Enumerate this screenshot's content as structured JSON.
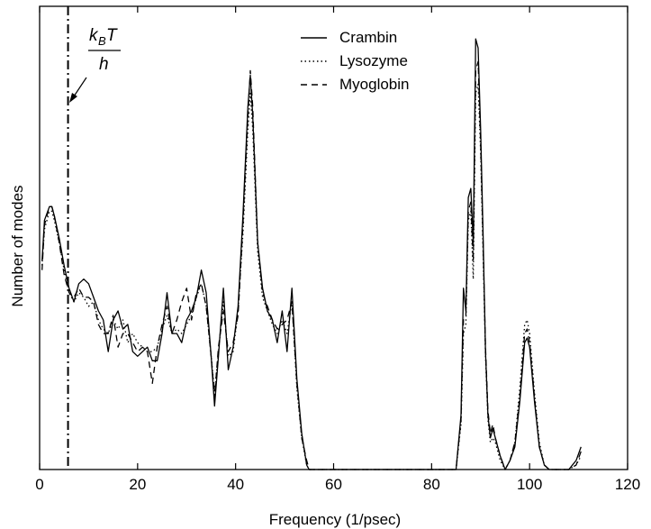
{
  "chart_data": {
    "type": "line",
    "title": "",
    "xlabel": "Frequency (1/psec)",
    "ylabel": "Number of modes",
    "xlim": [
      0,
      120
    ],
    "ylim": [
      0,
      1
    ],
    "xticks": [
      0,
      20,
      40,
      60,
      80,
      100,
      120
    ],
    "yticks_shown": false,
    "grid": false,
    "legend_position": "top-center",
    "annotation": {
      "numerator_k": "k",
      "numerator_sub": "B",
      "numerator_T": "T",
      "denominator": "h",
      "x": 5.8
    },
    "series": [
      {
        "name": "Crambin",
        "style": "solid",
        "color": "#000000",
        "points": [
          [
            0.5,
            0.46
          ],
          [
            1,
            0.55
          ],
          [
            2,
            0.58
          ],
          [
            2.5,
            0.58
          ],
          [
            3,
            0.56
          ],
          [
            4,
            0.51
          ],
          [
            5,
            0.45
          ],
          [
            6,
            0.4
          ],
          [
            7,
            0.37
          ],
          [
            8,
            0.41
          ],
          [
            9,
            0.42
          ],
          [
            10,
            0.41
          ],
          [
            11,
            0.38
          ],
          [
            12,
            0.35
          ],
          [
            13,
            0.33
          ],
          [
            14,
            0.26
          ],
          [
            15,
            0.33
          ],
          [
            16,
            0.35
          ],
          [
            17,
            0.31
          ],
          [
            18,
            0.32
          ],
          [
            19,
            0.26
          ],
          [
            20,
            0.25
          ],
          [
            21,
            0.26
          ],
          [
            22,
            0.27
          ],
          [
            23,
            0.24
          ],
          [
            24,
            0.24
          ],
          [
            25,
            0.3
          ],
          [
            26,
            0.39
          ],
          [
            27,
            0.3
          ],
          [
            28,
            0.3
          ],
          [
            29,
            0.28
          ],
          [
            30,
            0.33
          ],
          [
            31,
            0.35
          ],
          [
            32,
            0.38
          ],
          [
            33,
            0.44
          ],
          [
            34,
            0.39
          ],
          [
            35,
            0.25
          ],
          [
            35.7,
            0.14
          ],
          [
            36.5,
            0.25
          ],
          [
            37.5,
            0.4
          ],
          [
            38.5,
            0.22
          ],
          [
            39.5,
            0.27
          ],
          [
            40.5,
            0.36
          ],
          [
            41.5,
            0.56
          ],
          [
            42.5,
            0.8
          ],
          [
            43,
            0.87
          ],
          [
            43.5,
            0.78
          ],
          [
            44.5,
            0.5
          ],
          [
            45.5,
            0.4
          ],
          [
            46.5,
            0.35
          ],
          [
            47.5,
            0.33
          ],
          [
            48.5,
            0.28
          ],
          [
            49.5,
            0.35
          ],
          [
            50.5,
            0.26
          ],
          [
            51.5,
            0.4
          ],
          [
            52.5,
            0.2
          ],
          [
            53.5,
            0.08
          ],
          [
            54.5,
            0.01
          ],
          [
            55,
            0.0
          ],
          [
            56,
            0.0
          ],
          [
            70,
            0.0
          ],
          [
            85,
            0.0
          ],
          [
            86,
            0.12
          ],
          [
            86.5,
            0.4
          ],
          [
            87,
            0.35
          ],
          [
            87.5,
            0.6
          ],
          [
            88,
            0.62
          ],
          [
            88.5,
            0.5
          ],
          [
            89,
            0.95
          ],
          [
            89.5,
            0.93
          ],
          [
            90,
            0.75
          ],
          [
            90.5,
            0.52
          ],
          [
            91,
            0.26
          ],
          [
            91.5,
            0.12
          ],
          [
            92,
            0.07
          ],
          [
            92.5,
            0.09
          ],
          [
            93,
            0.07
          ],
          [
            94,
            0.03
          ],
          [
            95,
            0.0
          ],
          [
            96,
            0.02
          ],
          [
            97,
            0.05
          ],
          [
            98,
            0.15
          ],
          [
            99,
            0.28
          ],
          [
            99.5,
            0.29
          ],
          [
            100,
            0.27
          ],
          [
            101,
            0.15
          ],
          [
            102,
            0.05
          ],
          [
            103,
            0.01
          ],
          [
            104,
            0.0
          ],
          [
            108,
            0.0
          ],
          [
            109.5,
            0.02
          ],
          [
            110.5,
            0.05
          ]
        ]
      },
      {
        "name": "Lysozyme",
        "style": "dotted",
        "color": "#000000",
        "points": [
          [
            0.5,
            0.45
          ],
          [
            1,
            0.53
          ],
          [
            2,
            0.57
          ],
          [
            2.5,
            0.57
          ],
          [
            3,
            0.55
          ],
          [
            4,
            0.5
          ],
          [
            5,
            0.44
          ],
          [
            6,
            0.39
          ],
          [
            7,
            0.37
          ],
          [
            8,
            0.39
          ],
          [
            9,
            0.38
          ],
          [
            10,
            0.36
          ],
          [
            11,
            0.37
          ],
          [
            12,
            0.33
          ],
          [
            13,
            0.31
          ],
          [
            14,
            0.3
          ],
          [
            15,
            0.33
          ],
          [
            16,
            0.31
          ],
          [
            17,
            0.33
          ],
          [
            18,
            0.28
          ],
          [
            19,
            0.3
          ],
          [
            20,
            0.28
          ],
          [
            21,
            0.27
          ],
          [
            22,
            0.26
          ],
          [
            23,
            0.26
          ],
          [
            24,
            0.27
          ],
          [
            25,
            0.31
          ],
          [
            26,
            0.34
          ],
          [
            27,
            0.3
          ],
          [
            28,
            0.31
          ],
          [
            29,
            0.3
          ],
          [
            30,
            0.32
          ],
          [
            31,
            0.34
          ],
          [
            32,
            0.38
          ],
          [
            33,
            0.41
          ],
          [
            34,
            0.36
          ],
          [
            35,
            0.25
          ],
          [
            35.7,
            0.17
          ],
          [
            36.5,
            0.26
          ],
          [
            37.5,
            0.37
          ],
          [
            38.5,
            0.25
          ],
          [
            39.5,
            0.26
          ],
          [
            40.5,
            0.35
          ],
          [
            41.5,
            0.52
          ],
          [
            42.5,
            0.75
          ],
          [
            43,
            0.83
          ],
          [
            43.5,
            0.75
          ],
          [
            44.5,
            0.48
          ],
          [
            45.5,
            0.38
          ],
          [
            46.5,
            0.35
          ],
          [
            47.5,
            0.32
          ],
          [
            48.5,
            0.3
          ],
          [
            49.5,
            0.33
          ],
          [
            50.5,
            0.3
          ],
          [
            51.5,
            0.37
          ],
          [
            52.5,
            0.18
          ],
          [
            53.5,
            0.07
          ],
          [
            54.5,
            0.01
          ],
          [
            55,
            0.0
          ],
          [
            56,
            0.0
          ],
          [
            70,
            0.0
          ],
          [
            85,
            0.0
          ],
          [
            86,
            0.1
          ],
          [
            86.5,
            0.3
          ],
          [
            87,
            0.32
          ],
          [
            87.5,
            0.55
          ],
          [
            88,
            0.57
          ],
          [
            88.5,
            0.42
          ],
          [
            89,
            0.83
          ],
          [
            89.5,
            0.85
          ],
          [
            90,
            0.7
          ],
          [
            90.5,
            0.48
          ],
          [
            91,
            0.25
          ],
          [
            91.5,
            0.11
          ],
          [
            92,
            0.06
          ],
          [
            92.5,
            0.07
          ],
          [
            93,
            0.06
          ],
          [
            94,
            0.02
          ],
          [
            95,
            0.0
          ],
          [
            96,
            0.02
          ],
          [
            97,
            0.06
          ],
          [
            98,
            0.18
          ],
          [
            99,
            0.32
          ],
          [
            99.5,
            0.33
          ],
          [
            100,
            0.3
          ],
          [
            101,
            0.17
          ],
          [
            102,
            0.06
          ],
          [
            103,
            0.01
          ],
          [
            104,
            0.0
          ],
          [
            108,
            0.0
          ],
          [
            109.5,
            0.01
          ],
          [
            110.5,
            0.03
          ]
        ]
      },
      {
        "name": "Myoglobin",
        "style": "dashed",
        "color": "#000000",
        "points": [
          [
            0.5,
            0.44
          ],
          [
            1,
            0.54
          ],
          [
            2,
            0.58
          ],
          [
            2.5,
            0.58
          ],
          [
            3,
            0.56
          ],
          [
            4,
            0.5
          ],
          [
            5,
            0.43
          ],
          [
            6,
            0.39
          ],
          [
            7,
            0.38
          ],
          [
            8,
            0.4
          ],
          [
            9,
            0.38
          ],
          [
            10,
            0.38
          ],
          [
            11,
            0.37
          ],
          [
            12,
            0.32
          ],
          [
            13,
            0.3
          ],
          [
            14,
            0.3
          ],
          [
            15,
            0.34
          ],
          [
            16,
            0.27
          ],
          [
            17,
            0.3
          ],
          [
            18,
            0.3
          ],
          [
            19,
            0.28
          ],
          [
            20,
            0.26
          ],
          [
            21,
            0.27
          ],
          [
            22,
            0.26
          ],
          [
            23,
            0.19
          ],
          [
            24,
            0.27
          ],
          [
            25,
            0.32
          ],
          [
            26,
            0.36
          ],
          [
            27,
            0.3
          ],
          [
            28,
            0.33
          ],
          [
            29,
            0.37
          ],
          [
            30,
            0.4
          ],
          [
            31,
            0.33
          ],
          [
            32,
            0.39
          ],
          [
            33,
            0.41
          ],
          [
            34,
            0.36
          ],
          [
            35,
            0.25
          ],
          [
            35.7,
            0.16
          ],
          [
            36.5,
            0.27
          ],
          [
            37.5,
            0.35
          ],
          [
            38.5,
            0.26
          ],
          [
            39.5,
            0.28
          ],
          [
            40.5,
            0.34
          ],
          [
            41.5,
            0.54
          ],
          [
            42.5,
            0.78
          ],
          [
            43,
            0.88
          ],
          [
            43.5,
            0.8
          ],
          [
            44.5,
            0.5
          ],
          [
            45.5,
            0.39
          ],
          [
            46.5,
            0.36
          ],
          [
            47.5,
            0.33
          ],
          [
            48.5,
            0.31
          ],
          [
            49.5,
            0.32
          ],
          [
            50.5,
            0.33
          ],
          [
            51.5,
            0.37
          ],
          [
            52.5,
            0.19
          ],
          [
            53.5,
            0.07
          ],
          [
            54.5,
            0.02
          ],
          [
            55,
            0.0
          ],
          [
            56,
            0.0
          ],
          [
            70,
            0.0
          ],
          [
            85,
            0.0
          ],
          [
            86,
            0.11
          ],
          [
            86.5,
            0.33
          ],
          [
            87,
            0.34
          ],
          [
            87.5,
            0.57
          ],
          [
            88,
            0.59
          ],
          [
            88.5,
            0.46
          ],
          [
            89,
            0.88
          ],
          [
            89.5,
            0.9
          ],
          [
            90,
            0.72
          ],
          [
            90.5,
            0.5
          ],
          [
            91,
            0.27
          ],
          [
            91.5,
            0.13
          ],
          [
            92,
            0.08
          ],
          [
            92.5,
            0.1
          ],
          [
            93,
            0.07
          ],
          [
            94,
            0.03
          ],
          [
            95,
            0.0
          ],
          [
            96,
            0.02
          ],
          [
            97,
            0.06
          ],
          [
            98,
            0.16
          ],
          [
            99,
            0.3
          ],
          [
            99.5,
            0.31
          ],
          [
            100,
            0.28
          ],
          [
            101,
            0.16
          ],
          [
            102,
            0.05
          ],
          [
            103,
            0.01
          ],
          [
            104,
            0.0
          ],
          [
            108,
            0.0
          ],
          [
            109.5,
            0.01
          ],
          [
            110.5,
            0.04
          ]
        ]
      }
    ]
  }
}
